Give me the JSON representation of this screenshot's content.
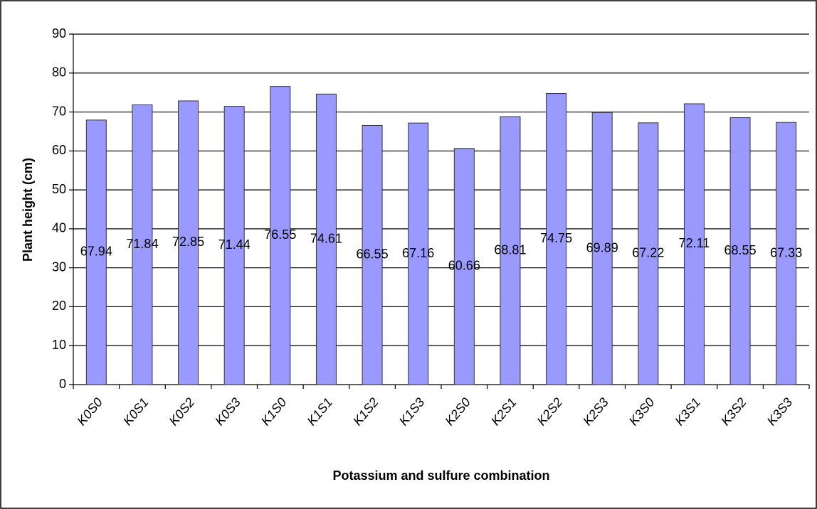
{
  "chart_data": {
    "type": "bar",
    "x_label": "Potassium and sulfure combination",
    "y_label": "Plant height (cm)",
    "categories": [
      "K0S0",
      "K0S1",
      "K0S2",
      "K0S3",
      "K1S0",
      "K1S1",
      "K1S2",
      "K1S3",
      "K2S0",
      "K2S1",
      "K2S2",
      "K2S3",
      "K3S0",
      "K3S1",
      "K3S2",
      "K3S3"
    ],
    "values": [
      67.94,
      71.84,
      72.85,
      71.44,
      76.55,
      74.61,
      66.55,
      67.16,
      60.66,
      68.81,
      74.75,
      69.89,
      67.22,
      72.11,
      68.55,
      67.33
    ],
    "color": "#9999ff",
    "ylim": [
      0,
      90
    ],
    "yticks": [
      0,
      10,
      20,
      30,
      40,
      50,
      60,
      70,
      80,
      90
    ],
    "grid": true
  }
}
